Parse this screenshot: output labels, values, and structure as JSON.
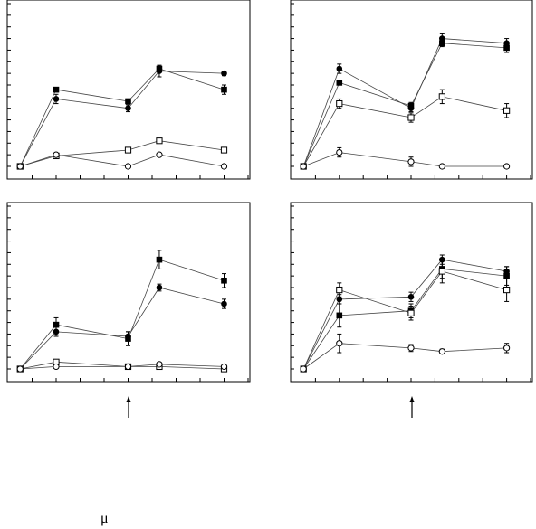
{
  "figure": {
    "footer_text": "μ"
  },
  "chart_data": [
    {
      "type": "line",
      "panel": "top-left",
      "ylim": [
        0,
        7
      ],
      "xlim": [
        -0.5,
        9.5
      ],
      "x": [
        0,
        1.5,
        4.5,
        5.8,
        8.5
      ],
      "grid": false,
      "series": [
        {
          "marker": "filled-circle",
          "values": [
            0,
            2.9,
            2.5,
            4.1,
            4.0
          ],
          "errors": [
            0,
            0.2,
            0.15,
            0.25,
            0.1
          ]
        },
        {
          "marker": "filled-square",
          "values": [
            0,
            3.3,
            2.8,
            4.2,
            3.3
          ],
          "errors": [
            0,
            0.1,
            0.1,
            0.1,
            0.2
          ]
        },
        {
          "marker": "open-square",
          "values": [
            0,
            0.45,
            0.7,
            1.1,
            0.7
          ],
          "errors": [
            0,
            0.05,
            0.05,
            0.05,
            0.05
          ]
        },
        {
          "marker": "open-circle",
          "values": [
            0,
            0.5,
            0,
            0.5,
            0
          ],
          "errors": [
            0,
            0.05,
            0,
            0.05,
            0
          ]
        }
      ]
    },
    {
      "type": "line",
      "panel": "top-right",
      "ylim": [
        0,
        7
      ],
      "xlim": [
        -0.5,
        9.5
      ],
      "x": [
        0,
        1.5,
        4.5,
        5.8,
        8.5
      ],
      "grid": false,
      "series": [
        {
          "marker": "filled-circle",
          "values": [
            0,
            4.2,
            2.5,
            5.5,
            5.3
          ],
          "errors": [
            0,
            0.2,
            0.15,
            0.2,
            0.2
          ]
        },
        {
          "marker": "filled-square",
          "values": [
            0,
            3.6,
            2.6,
            5.3,
            5.1
          ],
          "errors": [
            0,
            0.1,
            0.15,
            0.15,
            0.2
          ]
        },
        {
          "marker": "open-square",
          "values": [
            0,
            2.7,
            2.1,
            3.0,
            2.4
          ],
          "errors": [
            0,
            0.2,
            0.2,
            0.3,
            0.3
          ]
        },
        {
          "marker": "open-circle",
          "values": [
            0,
            0.6,
            0.2,
            0,
            0
          ],
          "errors": [
            0,
            0.2,
            0.2,
            0,
            0
          ]
        }
      ]
    },
    {
      "type": "line",
      "panel": "bottom-left",
      "ylim": [
        0,
        7
      ],
      "xlim": [
        -0.5,
        9.5
      ],
      "x": [
        0,
        1.5,
        4.5,
        5.8,
        8.5
      ],
      "grid": false,
      "series": [
        {
          "marker": "filled-circle",
          "values": [
            0,
            1.6,
            1.4,
            3.5,
            2.8
          ],
          "errors": [
            0,
            0.2,
            0.2,
            0.15,
            0.2
          ]
        },
        {
          "marker": "filled-square",
          "values": [
            0,
            1.9,
            1.3,
            4.7,
            3.8
          ],
          "errors": [
            0,
            0.3,
            0.3,
            0.4,
            0.3
          ]
        },
        {
          "marker": "open-square",
          "values": [
            0,
            0.3,
            0.1,
            0.1,
            0
          ],
          "errors": [
            0,
            0.05,
            0.05,
            0.05,
            0.05
          ]
        },
        {
          "marker": "open-circle",
          "values": [
            0,
            0.1,
            0.1,
            0.2,
            0.1
          ],
          "errors": [
            0,
            0.05,
            0.05,
            0.05,
            0.05
          ]
        }
      ]
    },
    {
      "type": "line",
      "panel": "bottom-right",
      "ylim": [
        0,
        7
      ],
      "xlim": [
        -0.5,
        9.5
      ],
      "x": [
        0,
        1.5,
        4.5,
        5.8,
        8.5
      ],
      "grid": false,
      "series": [
        {
          "marker": "filled-circle",
          "values": [
            0,
            3.0,
            3.1,
            4.7,
            4.2
          ],
          "errors": [
            0,
            0.2,
            0.2,
            0.2,
            0.2
          ]
        },
        {
          "marker": "filled-square",
          "values": [
            0,
            2.3,
            2.5,
            4.3,
            4.0
          ],
          "errors": [
            0,
            0.5,
            0.3,
            0.4,
            0.4
          ]
        },
        {
          "marker": "open-square",
          "values": [
            0,
            3.4,
            2.4,
            4.2,
            3.4
          ],
          "errors": [
            0,
            0.3,
            0.3,
            0.5,
            0.5
          ]
        },
        {
          "marker": "open-circle",
          "values": [
            0,
            1.1,
            0.9,
            0.75,
            0.9
          ],
          "errors": [
            0,
            0.4,
            0.15,
            0.1,
            0.2
          ]
        }
      ]
    }
  ]
}
